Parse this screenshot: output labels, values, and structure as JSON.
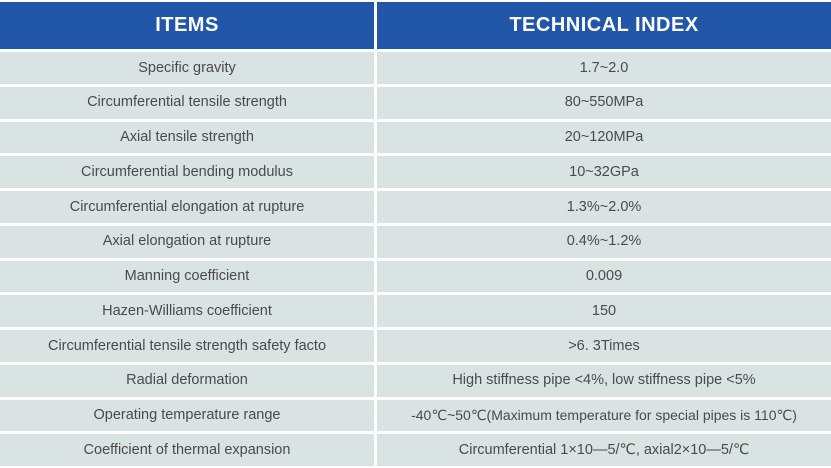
{
  "colors": {
    "header_bg": "#2256a8",
    "header_text": "#ffffff",
    "row_bg": "#d9e4e2",
    "body_text": "#4a4a4a",
    "divider": "#ffffff"
  },
  "table": {
    "header": {
      "items_label": "ITEMS",
      "index_label": "TECHNICAL INDEX"
    },
    "rows": [
      {
        "item": "Specific gravity",
        "value": "1.7~2.0"
      },
      {
        "item": "Circumferential tensile strength",
        "value": "80~550MPa"
      },
      {
        "item": "Axial tensile strength",
        "value": "20~120MPa"
      },
      {
        "item": "Circumferential bending modulus",
        "value": "10~32GPa"
      },
      {
        "item": "Circumferential elongation at rupture",
        "value": "1.3%~2.0%"
      },
      {
        "item": "Axial elongation at rupture",
        "value": "0.4%~1.2%"
      },
      {
        "item": "Manning coefficient",
        "value": "0.009"
      },
      {
        "item": "Hazen-Williams coefficient",
        "value": "150"
      },
      {
        "item": "Circumferential tensile strength safety facto",
        "value": ">6. 3Times"
      },
      {
        "item": "Radial deformation",
        "value": "High stiffness pipe <4%, low stiffness pipe <5%"
      },
      {
        "item": "Operating temperature range",
        "value": "-40℃~50℃(Maximum temperature for special pipes is 110℃)"
      },
      {
        "item": "Coefficient of thermal expansion",
        "value": "Circumferential 1×10—5/℃, axial2×10—5/℃"
      }
    ]
  }
}
